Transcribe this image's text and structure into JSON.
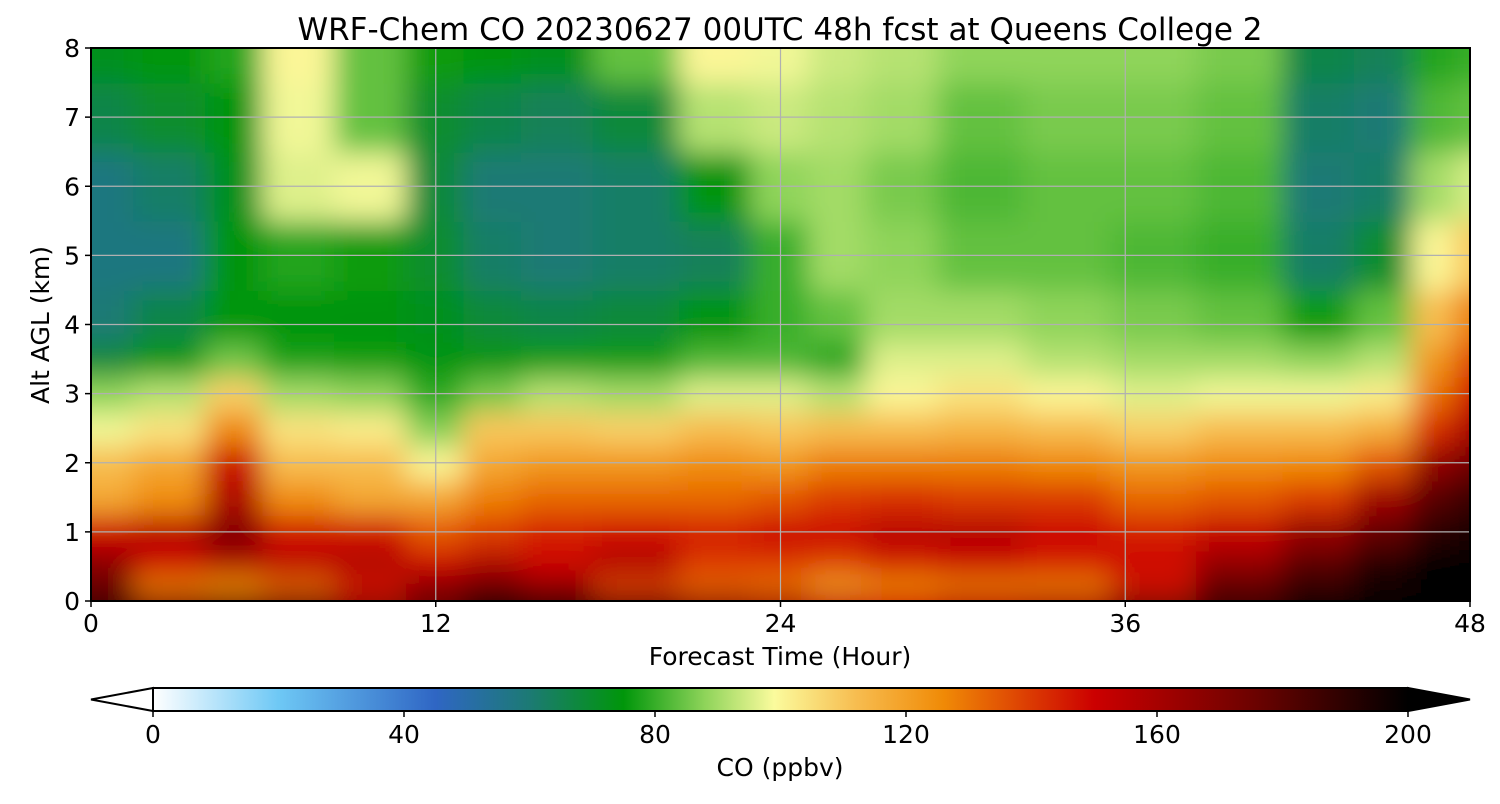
{
  "chart_data": {
    "type": "heatmap",
    "title": "WRF-Chem CO  20230627 00UTC 48h fcst at Queens College 2",
    "xlabel": "Forecast Time (Hour)",
    "ylabel": "Alt AGL (km)",
    "xlim": [
      0,
      48
    ],
    "ylim": [
      0,
      8
    ],
    "x_ticks": [
      "0",
      "12",
      "24",
      "36",
      "48"
    ],
    "y_ticks": [
      "0",
      "1",
      "2",
      "3",
      "4",
      "5",
      "6",
      "7",
      "8"
    ],
    "grid": true,
    "colorbar": {
      "label": "CO  (ppbv)",
      "min": 0,
      "max": 200,
      "ticks": [
        "0",
        "40",
        "80",
        "120",
        "160",
        "200"
      ],
      "extend": "both",
      "colors": [
        {
          "v": 0,
          "c": "#ffffff"
        },
        {
          "v": 20,
          "c": "#6ec8f5"
        },
        {
          "v": 45,
          "c": "#2f66c4"
        },
        {
          "v": 60,
          "c": "#1c7a74"
        },
        {
          "v": 75,
          "c": "#00960a"
        },
        {
          "v": 88,
          "c": "#8fd45a"
        },
        {
          "v": 99,
          "c": "#fbfb9d"
        },
        {
          "v": 112,
          "c": "#f7bd50"
        },
        {
          "v": 126,
          "c": "#f08a06"
        },
        {
          "v": 150,
          "c": "#cc0000"
        },
        {
          "v": 176,
          "c": "#6a0200"
        },
        {
          "v": 200,
          "c": "#000000"
        }
      ]
    },
    "altitudes_km": [
      0,
      0.25,
      0.5,
      1,
      1.5,
      2,
      2.5,
      3,
      3.5,
      4,
      5,
      6,
      7,
      8
    ],
    "series": [
      {
        "hour": 0,
        "values": [
          185,
          175,
          168,
          150,
          118,
          112,
          98,
          88,
          68,
          60,
          58,
          58,
          66,
          72
        ]
      },
      {
        "hour": 3,
        "values": [
          170,
          128,
          150,
          155,
          125,
          118,
          104,
          92,
          75,
          66,
          58,
          62,
          70,
          75
        ]
      },
      {
        "hour": 5,
        "values": [
          175,
          125,
          158,
          170,
          158,
          150,
          126,
          108,
          85,
          75,
          74,
          72,
          74,
          78
        ]
      },
      {
        "hour": 7,
        "values": [
          175,
          132,
          155,
          148,
          125,
          112,
          104,
          90,
          77,
          74,
          78,
          96,
          98,
          100
        ]
      },
      {
        "hour": 10,
        "values": [
          165,
          145,
          158,
          148,
          118,
          112,
          102,
          88,
          76,
          74,
          76,
          98,
          84,
          84
        ]
      },
      {
        "hour": 12,
        "values": [
          175,
          168,
          150,
          135,
          118,
          100,
          87,
          79,
          74,
          72,
          70,
          68,
          70,
          76
        ]
      },
      {
        "hour": 14,
        "values": [
          190,
          175,
          158,
          140,
          128,
          118,
          110,
          86,
          74,
          68,
          62,
          60,
          66,
          74
        ]
      },
      {
        "hour": 16,
        "values": [
          185,
          165,
          150,
          145,
          132,
          122,
          110,
          92,
          76,
          66,
          60,
          60,
          64,
          72
        ]
      },
      {
        "hour": 19,
        "values": [
          175,
          138,
          158,
          148,
          132,
          122,
          108,
          90,
          76,
          68,
          62,
          62,
          68,
          84
        ]
      },
      {
        "hour": 22,
        "values": [
          165,
          132,
          140,
          145,
          132,
          125,
          112,
          96,
          82,
          74,
          64,
          74,
          92,
          100
        ]
      },
      {
        "hour": 24,
        "values": [
          160,
          130,
          140,
          150,
          135,
          122,
          110,
          96,
          82,
          80,
          80,
          88,
          94,
          98
        ]
      },
      {
        "hour": 26,
        "values": [
          152,
          120,
          138,
          150,
          140,
          128,
          112,
          92,
          78,
          84,
          90,
          90,
          92,
          94
        ]
      },
      {
        "hour": 28,
        "values": [
          148,
          125,
          145,
          155,
          142,
          128,
          112,
          100,
          96,
          90,
          88,
          86,
          90,
          92
        ]
      },
      {
        "hour": 31,
        "values": [
          155,
          128,
          150,
          156,
          140,
          128,
          114,
          104,
          96,
          90,
          84,
          82,
          84,
          88
        ]
      },
      {
        "hour": 34,
        "values": [
          158,
          128,
          145,
          150,
          140,
          126,
          112,
          100,
          92,
          88,
          84,
          84,
          86,
          88
        ]
      },
      {
        "hour": 37,
        "values": [
          170,
          145,
          150,
          145,
          132,
          122,
          108,
          96,
          90,
          86,
          82,
          84,
          86,
          88
        ]
      },
      {
        "hour": 40,
        "values": [
          185,
          178,
          165,
          152,
          135,
          125,
          112,
          98,
          90,
          84,
          80,
          82,
          84,
          86
        ]
      },
      {
        "hour": 43,
        "values": [
          195,
          188,
          180,
          165,
          140,
          126,
          112,
          98,
          88,
          76,
          62,
          60,
          62,
          66
        ]
      },
      {
        "hour": 45,
        "values": [
          200,
          195,
          192,
          178,
          162,
          135,
          116,
          102,
          92,
          84,
          70,
          62,
          60,
          64
        ]
      },
      {
        "hour": 47,
        "values": [
          200,
          200,
          200,
          190,
          180,
          165,
          142,
          130,
          122,
          112,
          100,
          90,
          82,
          78
        ]
      },
      {
        "hour": 48,
        "values": [
          200,
          200,
          200,
          196,
          188,
          175,
          160,
          148,
          138,
          128,
          110,
          95,
          84,
          80
        ]
      }
    ]
  }
}
